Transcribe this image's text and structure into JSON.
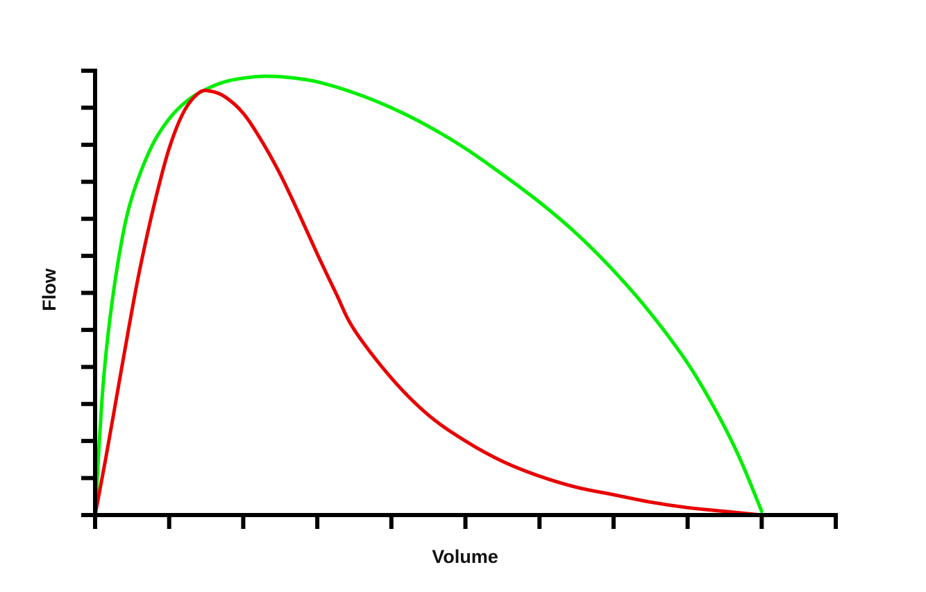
{
  "chart_data": {
    "type": "line",
    "title": "",
    "xlabel": "Volume",
    "ylabel": "Flow",
    "xlim": [
      0,
      10
    ],
    "ylim": [
      0,
      12
    ],
    "x_ticks": [
      0,
      1,
      2,
      3,
      4,
      5,
      6,
      7,
      8,
      9,
      10
    ],
    "y_ticks": [
      0,
      1,
      2,
      3,
      4,
      5,
      6,
      7,
      8,
      9,
      10,
      11,
      12
    ],
    "tick_labels_shown": false,
    "grid": false,
    "legend": "none",
    "series": [
      {
        "color": "#00ee00",
        "x": [
          0,
          0.1,
          0.2,
          0.35,
          0.5,
          0.75,
          1.0,
          1.25,
          1.5,
          1.75,
          2.0,
          2.3,
          2.6,
          3.0,
          3.5,
          4.0,
          4.5,
          5.0,
          5.5,
          6.0,
          6.5,
          7.0,
          7.5,
          8.0,
          8.4,
          8.7,
          9.0
        ],
        "y": [
          0,
          3.3,
          5.3,
          7.3,
          8.6,
          9.9,
          10.7,
          11.2,
          11.5,
          11.7,
          11.8,
          11.85,
          11.82,
          11.7,
          11.4,
          11.0,
          10.5,
          9.9,
          9.2,
          8.45,
          7.6,
          6.6,
          5.45,
          4.1,
          2.75,
          1.55,
          0.1
        ]
      },
      {
        "color": "#e80000",
        "x": [
          0,
          0.15,
          0.3,
          0.45,
          0.6,
          0.8,
          1.0,
          1.2,
          1.4,
          1.55,
          1.75,
          2.0,
          2.25,
          2.5,
          2.75,
          3.0,
          3.25,
          3.5,
          4.0,
          4.5,
          5.0,
          5.5,
          6.0,
          6.5,
          7.0,
          7.5,
          8.0,
          8.5,
          9.0
        ],
        "y": [
          0,
          1.6,
          3.3,
          5.0,
          6.6,
          8.4,
          9.9,
          10.9,
          11.4,
          11.45,
          11.3,
          10.85,
          10.1,
          9.2,
          8.15,
          7.05,
          6.0,
          5.0,
          3.7,
          2.7,
          2.0,
          1.45,
          1.05,
          0.75,
          0.55,
          0.35,
          0.2,
          0.1,
          0.0
        ]
      }
    ]
  }
}
